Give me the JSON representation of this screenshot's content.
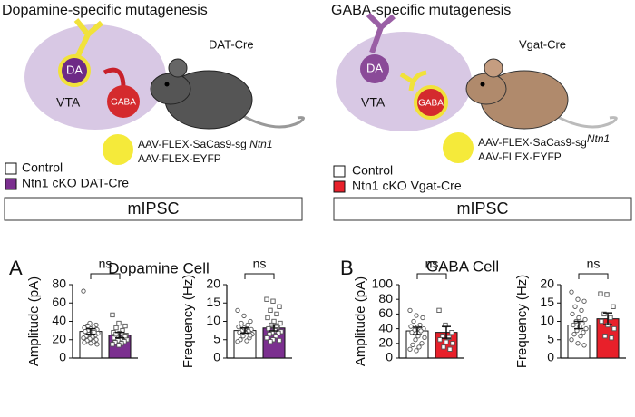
{
  "panels": [
    {
      "title": "Dopamine-specific mutagenesis",
      "da": "DA",
      "vta": "VTA",
      "gaba": "GABA",
      "mouse": "DAT-Cre",
      "virus": [
        {
          "text": "AAV-FLEX-SaCas9-sg",
          "italic": "Ntn1"
        },
        {
          "text": "AAV-FLEX-EYFP"
        }
      ],
      "legend": [
        "Control",
        "Ntn1 cKO DAT-Cre"
      ],
      "assay": "mIPSC",
      "letter": "A",
      "cell": "Dopamine Cell"
    },
    {
      "title": "GABA-specific mutagenesis",
      "da": "DA",
      "vta": "VTA",
      "gaba": "GABA",
      "mouse": "Vgat-Cre",
      "virus": [
        {
          "text": "AAV-FLEX-SaCas9-sg",
          "italic": "Ntn1"
        },
        {
          "text": "AAV-FLEX-EYFP"
        }
      ],
      "legend": [
        "Control",
        "Ntn1 cKO Vgat-Cre"
      ],
      "assay": "mIPSC",
      "letter": "B",
      "cell": "GABA Cell"
    }
  ],
  "chart_data": [
    {
      "type": "bar",
      "ylabel": "Amplitude (pA)",
      "ylim": [
        0,
        80
      ],
      "yticks": [
        0,
        20,
        40,
        60,
        80
      ],
      "annotation": "ns",
      "series": [
        {
          "color": "#ffffff",
          "values": [
            29
          ],
          "errors": [
            3
          ],
          "points": [
            73,
            38,
            36,
            35,
            34,
            33,
            32,
            31,
            30,
            30,
            29,
            28,
            27,
            26,
            25,
            24,
            23,
            22,
            21,
            20,
            19,
            18,
            17,
            16,
            15,
            35,
            28
          ]
        },
        {
          "color": "#7b2f8f",
          "values": [
            25
          ],
          "errors": [
            3
          ],
          "points": [
            47,
            38,
            35,
            33,
            30,
            28,
            27,
            25,
            24,
            23,
            22,
            21,
            20,
            19,
            18,
            17,
            16,
            15,
            14,
            24,
            26
          ]
        }
      ]
    },
    {
      "type": "bar",
      "ylabel": "Frequency (Hz)",
      "ylim": [
        0,
        20
      ],
      "yticks": [
        0,
        5,
        10,
        15,
        20
      ],
      "annotation": "ns",
      "series": [
        {
          "color": "#ffffff",
          "values": [
            7.5
          ],
          "errors": [
            0.7
          ],
          "points": [
            13,
            11.5,
            10,
            9.5,
            9,
            8.5,
            8,
            7.8,
            7.5,
            7.3,
            7,
            6.8,
            6.5,
            6,
            5.5,
            5,
            4.7,
            4.5,
            8.2,
            6.2
          ]
        },
        {
          "color": "#7b2f8f",
          "values": [
            8.2
          ],
          "errors": [
            0.8
          ],
          "points": [
            16,
            15.5,
            14,
            13,
            12,
            11,
            10,
            9.5,
            9,
            8.5,
            8,
            7.5,
            7.2,
            7,
            6.8,
            6.5,
            6,
            5.5,
            5,
            4.8,
            4.5,
            8.8
          ]
        }
      ]
    },
    {
      "type": "bar",
      "ylabel": "Amplitude (pA)",
      "ylim": [
        0,
        100
      ],
      "yticks": [
        0,
        20,
        40,
        60,
        80,
        100
      ],
      "annotation": "ns",
      "series": [
        {
          "color": "#ffffff",
          "values": [
            37
          ],
          "errors": [
            5
          ],
          "points": [
            65,
            58,
            55,
            50,
            45,
            43,
            42,
            40,
            38,
            37,
            35,
            30,
            28,
            25,
            20,
            18,
            15,
            12,
            10
          ]
        },
        {
          "color": "#e8202a",
          "values": [
            35
          ],
          "errors": [
            8
          ],
          "points": [
            65,
            45,
            35,
            30,
            28,
            25,
            22,
            20,
            15,
            12
          ]
        }
      ]
    },
    {
      "type": "bar",
      "ylabel": "Frequency (Hz)",
      "ylim": [
        0,
        20
      ],
      "yticks": [
        0,
        5,
        10,
        15,
        20
      ],
      "annotation": "ns",
      "series": [
        {
          "color": "#ffffff",
          "values": [
            9
          ],
          "errors": [
            1
          ],
          "points": [
            18,
            16,
            15.5,
            14,
            13,
            12,
            11,
            10.5,
            10,
            9.5,
            9,
            8.5,
            8,
            7.5,
            7,
            6.5,
            6,
            5,
            4,
            3.5
          ]
        },
        {
          "color": "#e8202a",
          "values": [
            10.7
          ],
          "errors": [
            1.6
          ],
          "points": [
            17.5,
            17.3,
            14,
            12,
            11,
            10,
            9,
            8,
            6,
            5.5
          ]
        }
      ]
    }
  ]
}
